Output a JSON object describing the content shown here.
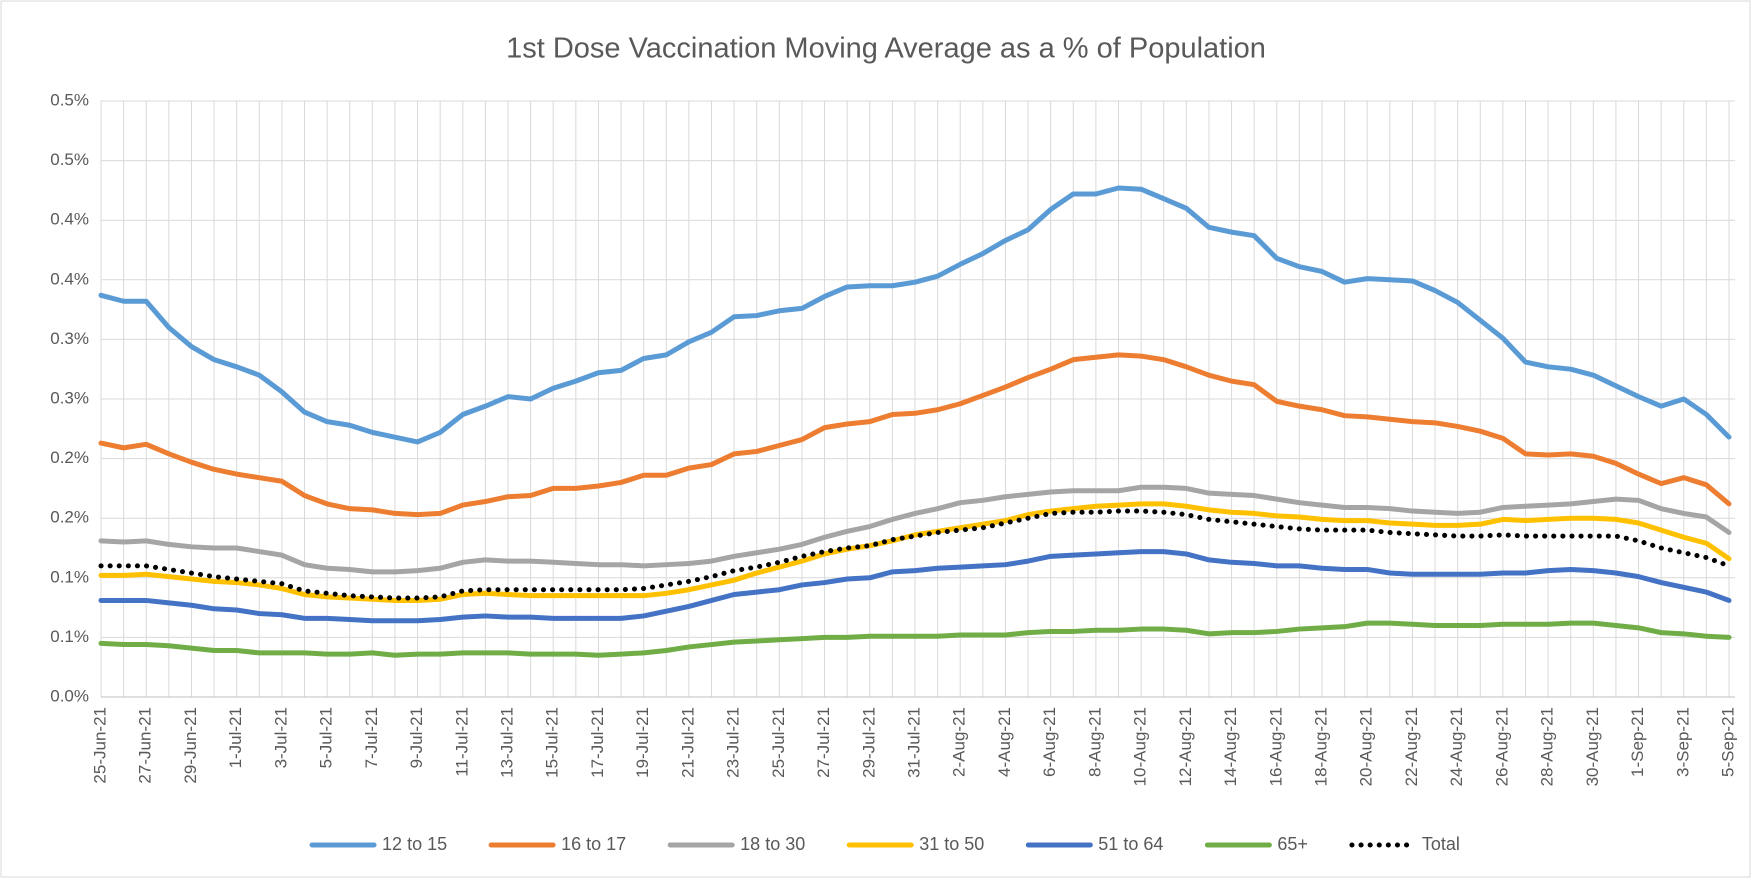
{
  "chart_data": {
    "type": "line",
    "title": "1st Dose Vaccination Moving Average as a % of Population",
    "categories": [
      "25-Jun-21",
      null,
      "27-Jun-21",
      null,
      "29-Jun-21",
      null,
      "1-Jul-21",
      null,
      "3-Jul-21",
      null,
      "5-Jul-21",
      null,
      "7-Jul-21",
      null,
      "9-Jul-21",
      null,
      "11-Jul-21",
      null,
      "13-Jul-21",
      null,
      "15-Jul-21",
      null,
      "17-Jul-21",
      null,
      "19-Jul-21",
      null,
      "21-Jul-21",
      null,
      "23-Jul-21",
      null,
      "25-Jul-21",
      null,
      "27-Jul-21",
      null,
      "29-Jul-21",
      null,
      "31-Jul-21",
      null,
      "2-Aug-21",
      null,
      "4-Aug-21",
      null,
      "6-Aug-21",
      null,
      "8-Aug-21",
      null,
      "10-Aug-21",
      null,
      "12-Aug-21",
      null,
      "14-Aug-21",
      null,
      "16-Aug-21",
      null,
      "18-Aug-21",
      null,
      "20-Aug-21",
      null,
      "22-Aug-21",
      null,
      "24-Aug-21",
      null,
      "26-Aug-21",
      null,
      "28-Aug-21",
      null,
      "30-Aug-21",
      null,
      "1-Sep-21",
      null,
      "3-Sep-21",
      null,
      "5-Sep-21"
    ],
    "series": [
      {
        "name": "12 to 15",
        "color": "#5b9bd5",
        "values": [
          0.337,
          0.332,
          0.332,
          0.31,
          0.294,
          0.283,
          0.277,
          0.27,
          0.256,
          0.239,
          0.231,
          0.228,
          0.222,
          0.218,
          0.214,
          0.222,
          0.237,
          0.244,
          0.252,
          0.25,
          0.259,
          0.265,
          0.272,
          0.274,
          0.284,
          0.287,
          0.298,
          0.306,
          0.319,
          0.32,
          0.324,
          0.326,
          0.336,
          0.344,
          0.345,
          0.345,
          0.348,
          0.353,
          0.363,
          0.372,
          0.383,
          0.392,
          0.409,
          0.422,
          0.422,
          0.427,
          0.426,
          0.418,
          0.41,
          0.394,
          0.39,
          0.387,
          0.368,
          0.361,
          0.357,
          0.348,
          0.351,
          0.35,
          0.349,
          0.341,
          0.331,
          0.316,
          0.301,
          0.281,
          0.277,
          0.275,
          0.27,
          0.261,
          0.252,
          0.244,
          0.25,
          0.237,
          0.218
        ]
      },
      {
        "name": "16 to 17",
        "color": "#ed7d31",
        "values": [
          0.213,
          0.209,
          0.212,
          0.204,
          0.197,
          0.191,
          0.187,
          0.184,
          0.181,
          0.169,
          0.162,
          0.158,
          0.157,
          0.154,
          0.153,
          0.154,
          0.161,
          0.164,
          0.168,
          0.169,
          0.175,
          0.175,
          0.177,
          0.18,
          0.186,
          0.186,
          0.192,
          0.195,
          0.204,
          0.206,
          0.211,
          0.216,
          0.226,
          0.229,
          0.231,
          0.237,
          0.238,
          0.241,
          0.246,
          0.253,
          0.26,
          0.268,
          0.275,
          0.283,
          0.285,
          0.287,
          0.286,
          0.283,
          0.277,
          0.27,
          0.265,
          0.262,
          0.248,
          0.244,
          0.241,
          0.236,
          0.235,
          0.233,
          0.231,
          0.23,
          0.227,
          0.223,
          0.217,
          0.204,
          0.203,
          0.204,
          0.202,
          0.196,
          0.187,
          0.179,
          0.184,
          0.178,
          0.162
        ]
      },
      {
        "name": "18 to 30",
        "color": "#a5a5a5",
        "values": [
          0.131,
          0.13,
          0.131,
          0.128,
          0.126,
          0.125,
          0.125,
          0.122,
          0.119,
          0.111,
          0.108,
          0.107,
          0.105,
          0.105,
          0.106,
          0.108,
          0.113,
          0.115,
          0.114,
          0.114,
          0.113,
          0.112,
          0.111,
          0.111,
          0.11,
          0.111,
          0.112,
          0.114,
          0.118,
          0.121,
          0.124,
          0.128,
          0.134,
          0.139,
          0.143,
          0.149,
          0.154,
          0.158,
          0.163,
          0.165,
          0.168,
          0.17,
          0.172,
          0.173,
          0.173,
          0.173,
          0.176,
          0.176,
          0.175,
          0.171,
          0.17,
          0.169,
          0.166,
          0.163,
          0.161,
          0.159,
          0.159,
          0.158,
          0.156,
          0.155,
          0.154,
          0.155,
          0.159,
          0.16,
          0.161,
          0.162,
          0.164,
          0.166,
          0.165,
          0.158,
          0.154,
          0.151,
          0.138
        ]
      },
      {
        "name": "31 to 50",
        "color": "#ffc000",
        "values": [
          0.102,
          0.102,
          0.103,
          0.101,
          0.099,
          0.097,
          0.096,
          0.094,
          0.091,
          0.086,
          0.084,
          0.083,
          0.082,
          0.081,
          0.081,
          0.082,
          0.086,
          0.087,
          0.086,
          0.085,
          0.085,
          0.085,
          0.085,
          0.085,
          0.085,
          0.087,
          0.09,
          0.094,
          0.098,
          0.104,
          0.109,
          0.114,
          0.12,
          0.124,
          0.127,
          0.131,
          0.136,
          0.139,
          0.142,
          0.145,
          0.148,
          0.153,
          0.156,
          0.158,
          0.16,
          0.161,
          0.162,
          0.162,
          0.16,
          0.157,
          0.155,
          0.154,
          0.152,
          0.151,
          0.149,
          0.148,
          0.148,
          0.146,
          0.145,
          0.144,
          0.144,
          0.145,
          0.149,
          0.148,
          0.149,
          0.15,
          0.15,
          0.149,
          0.146,
          0.14,
          0.134,
          0.129,
          0.116
        ]
      },
      {
        "name": "51 to 64",
        "color": "#4472c4",
        "values": [
          0.081,
          0.081,
          0.081,
          0.079,
          0.077,
          0.074,
          0.073,
          0.07,
          0.069,
          0.066,
          0.066,
          0.065,
          0.064,
          0.064,
          0.064,
          0.065,
          0.067,
          0.068,
          0.067,
          0.067,
          0.066,
          0.066,
          0.066,
          0.066,
          0.068,
          0.072,
          0.076,
          0.081,
          0.086,
          0.088,
          0.09,
          0.094,
          0.096,
          0.099,
          0.1,
          0.105,
          0.106,
          0.108,
          0.109,
          0.11,
          0.111,
          0.114,
          0.118,
          0.119,
          0.12,
          0.121,
          0.122,
          0.122,
          0.12,
          0.115,
          0.113,
          0.112,
          0.11,
          0.11,
          0.108,
          0.107,
          0.107,
          0.104,
          0.103,
          0.103,
          0.103,
          0.103,
          0.104,
          0.104,
          0.106,
          0.107,
          0.106,
          0.104,
          0.101,
          0.096,
          0.092,
          0.088,
          0.081
        ]
      },
      {
        "name": "65+",
        "color": "#70ad47",
        "values": [
          0.045,
          0.044,
          0.044,
          0.043,
          0.041,
          0.039,
          0.039,
          0.037,
          0.037,
          0.037,
          0.036,
          0.036,
          0.037,
          0.035,
          0.036,
          0.036,
          0.037,
          0.037,
          0.037,
          0.036,
          0.036,
          0.036,
          0.035,
          0.036,
          0.037,
          0.039,
          0.042,
          0.044,
          0.046,
          0.047,
          0.048,
          0.049,
          0.05,
          0.05,
          0.051,
          0.051,
          0.051,
          0.051,
          0.052,
          0.052,
          0.052,
          0.054,
          0.055,
          0.055,
          0.056,
          0.056,
          0.057,
          0.057,
          0.056,
          0.053,
          0.054,
          0.054,
          0.055,
          0.057,
          0.058,
          0.059,
          0.062,
          0.062,
          0.061,
          0.06,
          0.06,
          0.06,
          0.061,
          0.061,
          0.061,
          0.062,
          0.062,
          0.06,
          0.058,
          0.054,
          0.053,
          0.051,
          0.05
        ]
      },
      {
        "name": "Total",
        "color": "#000000",
        "style": "dotted",
        "values": [
          0.11,
          0.11,
          0.11,
          0.107,
          0.104,
          0.101,
          0.099,
          0.097,
          0.095,
          0.089,
          0.087,
          0.085,
          0.084,
          0.083,
          0.083,
          0.084,
          0.089,
          0.09,
          0.09,
          0.09,
          0.09,
          0.09,
          0.09,
          0.09,
          0.091,
          0.094,
          0.097,
          0.101,
          0.106,
          0.109,
          0.113,
          0.118,
          0.122,
          0.125,
          0.127,
          0.132,
          0.135,
          0.138,
          0.14,
          0.142,
          0.146,
          0.15,
          0.154,
          0.155,
          0.155,
          0.156,
          0.156,
          0.155,
          0.153,
          0.149,
          0.147,
          0.145,
          0.143,
          0.141,
          0.14,
          0.14,
          0.14,
          0.138,
          0.137,
          0.136,
          0.135,
          0.135,
          0.136,
          0.135,
          0.135,
          0.135,
          0.135,
          0.135,
          0.131,
          0.125,
          0.121,
          0.117,
          0.11
        ]
      }
    ],
    "ylim": [
      0,
      0.5
    ],
    "yticks": [
      {
        "value": 0,
        "label": "0.0%"
      },
      {
        "value": 0.05,
        "label": "0.1%"
      },
      {
        "value": 0.1,
        "label": "0.1%"
      },
      {
        "value": 0.15,
        "label": "0.2%"
      },
      {
        "value": 0.2,
        "label": "0.2%"
      },
      {
        "value": 0.25,
        "label": "0.3%"
      },
      {
        "value": 0.3,
        "label": "0.3%"
      },
      {
        "value": 0.35,
        "label": "0.4%"
      },
      {
        "value": 0.4,
        "label": "0.4%"
      },
      {
        "value": 0.45,
        "label": "0.5%"
      },
      {
        "value": 0.5,
        "label": "0.5%"
      }
    ],
    "grid": true,
    "legend": "bottom"
  }
}
